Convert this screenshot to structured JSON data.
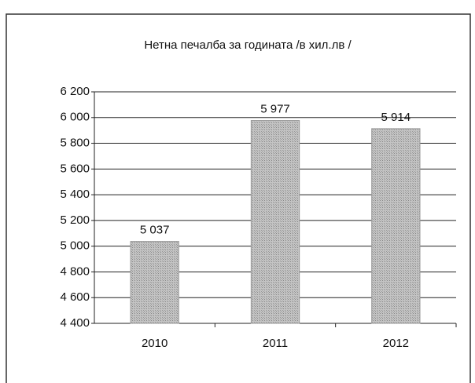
{
  "chart_data": {
    "type": "bar",
    "title": "Нетна печалба за годината /в хил.лв /",
    "categories": [
      "2010",
      "2011",
      "2012"
    ],
    "values": [
      5037,
      5977,
      5914
    ],
    "value_labels": [
      "5 037",
      "5 977",
      "5 914"
    ],
    "color": "#b5b5b5",
    "ylim": [
      4400,
      6200
    ],
    "yticks": [
      {
        "value": 4400,
        "label": "4 400"
      },
      {
        "value": 4600,
        "label": "4 600"
      },
      {
        "value": 4800,
        "label": "4 800"
      },
      {
        "value": 5000,
        "label": "5 000"
      },
      {
        "value": 5200,
        "label": "5 200"
      },
      {
        "value": 5400,
        "label": "5 400"
      },
      {
        "value": 5600,
        "label": "5 600"
      },
      {
        "value": 5800,
        "label": "5 800"
      },
      {
        "value": 6000,
        "label": "6 000"
      },
      {
        "value": 6200,
        "label": "6 200"
      }
    ],
    "grid": true
  }
}
